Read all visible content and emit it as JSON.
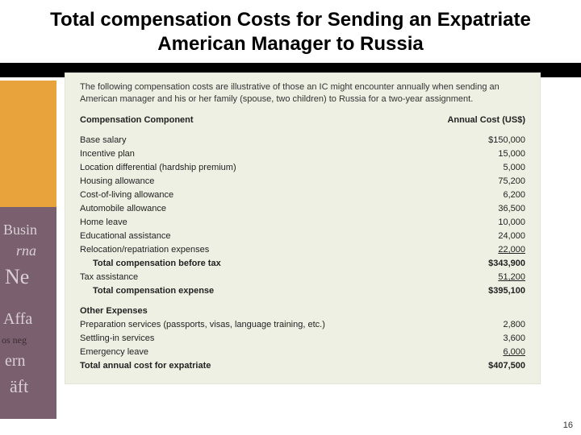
{
  "slide": {
    "title": "Total compensation Costs for Sending an Expatriate American Manager to Russia",
    "page_number": "16"
  },
  "colors": {
    "card_bg": "#eef0e3",
    "orange": "#e8a33d",
    "deco_bg": "#7a5f6f",
    "black": "#000000"
  },
  "card": {
    "intro": "The following compensation costs are illustrative of those an IC might encounter annually when sending an American manager and his or her family (spouse, two children) to Russia for a two-year assignment.",
    "header": {
      "left": "Compensation Component",
      "right": "Annual Cost (US$)"
    },
    "main_rows": [
      {
        "label": "Base salary",
        "value": "$150,000"
      },
      {
        "label": "Incentive plan",
        "value": "15,000"
      },
      {
        "label": "Location differential (hardship premium)",
        "value": "5,000"
      },
      {
        "label": "Housing allowance",
        "value": "75,200"
      },
      {
        "label": "Cost-of-living allowance",
        "value": "6,200"
      },
      {
        "label": "Automobile allowance",
        "value": "36,500"
      },
      {
        "label": "Home leave",
        "value": "10,000"
      },
      {
        "label": "Educational assistance",
        "value": "24,000"
      },
      {
        "label": "Relocation/repatriation expenses",
        "value": "22,000",
        "underline": true
      }
    ],
    "subtotal1": {
      "label": "Total compensation before tax",
      "value": "$343,900"
    },
    "tax_row": {
      "label": "Tax assistance",
      "value": "51,200",
      "underline": true
    },
    "subtotal2": {
      "label": "Total compensation expense",
      "value": "$395,100"
    },
    "other_header": "Other Expenses",
    "other_rows": [
      {
        "label": "Preparation services (passports, visas, language training, etc.)",
        "value": "2,800"
      },
      {
        "label": "Settling-in services",
        "value": "3,600"
      },
      {
        "label": "Emergency leave",
        "value": "6,000",
        "underline": true
      }
    ],
    "grand_total": {
      "label": "Total annual cost for expatriate",
      "value": "$407,500"
    }
  },
  "deco": {
    "t1": "Busin",
    "t2": "rna",
    "t3": "Ne",
    "t4": "Affa",
    "t5": "os neg",
    "t6": "ern",
    "t7": "äft"
  }
}
